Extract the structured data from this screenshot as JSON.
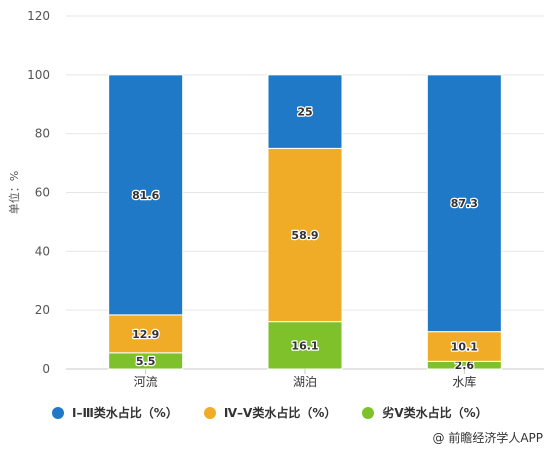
{
  "chart_data": {
    "type": "bar",
    "stacked": true,
    "ylabel": "单位：%",
    "ylim": [
      0,
      120
    ],
    "yticks": [
      0,
      20,
      40,
      60,
      80,
      100,
      120
    ],
    "grid": true,
    "categories": [
      "河流",
      "湖泊",
      "水库"
    ],
    "series": [
      {
        "name": "劣Ⅴ类水占比（%）",
        "color": "#7ec12b",
        "values": [
          5.5,
          16.1,
          2.6
        ]
      },
      {
        "name": "Ⅳ–Ⅴ类水占比（%）",
        "color": "#f0ac26",
        "values": [
          12.9,
          58.9,
          10.1
        ]
      },
      {
        "name": "Ⅰ–Ⅲ类水占比（%）",
        "color": "#1f79c6",
        "values": [
          81.6,
          25,
          87.3
        ]
      }
    ],
    "legend_order": [
      2,
      1,
      0
    ],
    "legend_position": "bottom"
  },
  "footer": {
    "source": "@ 前瞻经济学人APP"
  }
}
